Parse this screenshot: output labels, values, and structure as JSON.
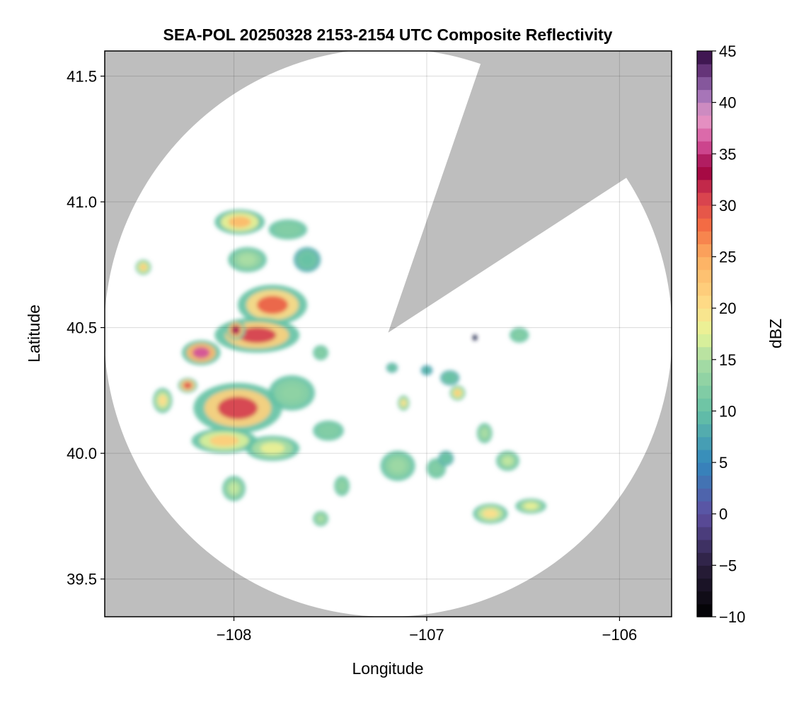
{
  "chart_data": {
    "type": "heatmap",
    "title": "SEA-POL 20250328 2153-2154 UTC Composite Reflectivity",
    "xlabel": "Longitude",
    "ylabel": "Latitude",
    "xlim": [
      -108.67,
      -105.73
    ],
    "ylim": [
      39.35,
      41.6
    ],
    "x_ticks": [
      -108,
      -107,
      -106
    ],
    "x_tick_labels": [
      "−108",
      "−107",
      "−106"
    ],
    "y_ticks": [
      39.5,
      40.0,
      40.5,
      41.0,
      41.5
    ],
    "y_tick_labels": [
      "39.5",
      "40.0",
      "40.5",
      "41.0",
      "41.5"
    ],
    "grid": true,
    "background_color": "#bebebe",
    "no_echo_color": "#ffffff",
    "radar": {
      "center_lon": -107.2,
      "center_lat": 40.48,
      "range_deg_lat": 1.13,
      "blocked_sectors_deg_from_north": [
        [
          19,
          57
        ]
      ]
    },
    "colorbar": {
      "label": "dBZ",
      "min": -10,
      "max": 45,
      "step": 1.25,
      "ticks": [
        -10,
        -5,
        0,
        5,
        10,
        15,
        20,
        25,
        30,
        35,
        40,
        45
      ],
      "tick_labels": [
        "−10",
        "−5",
        "0",
        "5",
        "10",
        "15",
        "20",
        "25",
        "30",
        "35",
        "40",
        "45"
      ],
      "colormap": "Spectral (reversed, extended dark)",
      "colors": [
        "#000000",
        "#2a1f3d",
        "#5e4fa2",
        "#3288bd",
        "#66c2a5",
        "#abdda4",
        "#e6f598",
        "#fee08b",
        "#fdae61",
        "#f46d43",
        "#d53e4f",
        "#9e0142",
        "#d4509a",
        "#e79ac8",
        "#9c6fb5",
        "#5b2a6e",
        "#2d0a3e"
      ],
      "color_stops": [
        -10,
        -5,
        0,
        5,
        10,
        15,
        17.5,
        20,
        25,
        28,
        31,
        33.5,
        36,
        38.5,
        41,
        43.5,
        45
      ]
    },
    "echo_cells": [
      {
        "lon": -107.97,
        "lat": 40.92,
        "rx": 0.13,
        "ry": 0.05,
        "peak_dbz": 24
      },
      {
        "lon": -107.72,
        "lat": 40.89,
        "rx": 0.1,
        "ry": 0.04,
        "peak_dbz": 12
      },
      {
        "lon": -107.93,
        "lat": 40.77,
        "rx": 0.1,
        "ry": 0.05,
        "peak_dbz": 15
      },
      {
        "lon": -107.62,
        "lat": 40.77,
        "rx": 0.07,
        "ry": 0.05,
        "peak_dbz": 10
      },
      {
        "lon": -108.47,
        "lat": 40.74,
        "rx": 0.04,
        "ry": 0.03,
        "peak_dbz": 22
      },
      {
        "lon": -107.8,
        "lat": 40.59,
        "rx": 0.18,
        "ry": 0.08,
        "peak_dbz": 29
      },
      {
        "lon": -107.88,
        "lat": 40.47,
        "rx": 0.22,
        "ry": 0.07,
        "peak_dbz": 31
      },
      {
        "lon": -107.99,
        "lat": 40.49,
        "rx": 0.05,
        "ry": 0.04,
        "peak_dbz": 34
      },
      {
        "lon": -108.17,
        "lat": 40.4,
        "rx": 0.1,
        "ry": 0.05,
        "peak_dbz": 36
      },
      {
        "lon": -108.24,
        "lat": 40.27,
        "rx": 0.05,
        "ry": 0.03,
        "peak_dbz": 30
      },
      {
        "lon": -107.98,
        "lat": 40.18,
        "rx": 0.23,
        "ry": 0.1,
        "peak_dbz": 31
      },
      {
        "lon": -108.05,
        "lat": 40.05,
        "rx": 0.17,
        "ry": 0.05,
        "peak_dbz": 22
      },
      {
        "lon": -107.7,
        "lat": 40.24,
        "rx": 0.12,
        "ry": 0.07,
        "peak_dbz": 13
      },
      {
        "lon": -107.8,
        "lat": 40.02,
        "rx": 0.14,
        "ry": 0.05,
        "peak_dbz": 18
      },
      {
        "lon": -108.37,
        "lat": 40.21,
        "rx": 0.05,
        "ry": 0.05,
        "peak_dbz": 20
      },
      {
        "lon": -108.0,
        "lat": 39.86,
        "rx": 0.06,
        "ry": 0.05,
        "peak_dbz": 16
      },
      {
        "lon": -107.51,
        "lat": 40.09,
        "rx": 0.08,
        "ry": 0.04,
        "peak_dbz": 12
      },
      {
        "lon": -107.15,
        "lat": 39.95,
        "rx": 0.09,
        "ry": 0.06,
        "peak_dbz": 14
      },
      {
        "lon": -106.95,
        "lat": 39.94,
        "rx": 0.05,
        "ry": 0.04,
        "peak_dbz": 12
      },
      {
        "lon": -106.9,
        "lat": 39.98,
        "rx": 0.04,
        "ry": 0.03,
        "peak_dbz": 10
      },
      {
        "lon": -106.58,
        "lat": 39.97,
        "rx": 0.06,
        "ry": 0.04,
        "peak_dbz": 16
      },
      {
        "lon": -107.44,
        "lat": 39.87,
        "rx": 0.04,
        "ry": 0.04,
        "peak_dbz": 13
      },
      {
        "lon": -107.55,
        "lat": 39.74,
        "rx": 0.04,
        "ry": 0.03,
        "peak_dbz": 15
      },
      {
        "lon": -106.67,
        "lat": 39.76,
        "rx": 0.09,
        "ry": 0.04,
        "peak_dbz": 20
      },
      {
        "lon": -106.46,
        "lat": 39.79,
        "rx": 0.08,
        "ry": 0.03,
        "peak_dbz": 18
      },
      {
        "lon": -106.52,
        "lat": 40.47,
        "rx": 0.05,
        "ry": 0.03,
        "peak_dbz": 12
      },
      {
        "lon": -106.88,
        "lat": 40.3,
        "rx": 0.05,
        "ry": 0.03,
        "peak_dbz": 10
      },
      {
        "lon": -106.84,
        "lat": 40.24,
        "rx": 0.04,
        "ry": 0.03,
        "peak_dbz": 22
      },
      {
        "lon": -106.7,
        "lat": 40.08,
        "rx": 0.04,
        "ry": 0.04,
        "peak_dbz": 15
      },
      {
        "lon": -107.12,
        "lat": 40.2,
        "rx": 0.03,
        "ry": 0.03,
        "peak_dbz": 20
      },
      {
        "lon": -107.18,
        "lat": 40.34,
        "rx": 0.03,
        "ry": 0.02,
        "peak_dbz": 10
      },
      {
        "lon": -107.0,
        "lat": 40.33,
        "rx": 0.03,
        "ry": 0.02,
        "peak_dbz": 8
      },
      {
        "lon": -107.55,
        "lat": 40.4,
        "rx": 0.04,
        "ry": 0.03,
        "peak_dbz": 12
      },
      {
        "lon": -106.75,
        "lat": 40.46,
        "rx": 0.012,
        "ry": 0.012,
        "peak_dbz": -9
      }
    ]
  }
}
